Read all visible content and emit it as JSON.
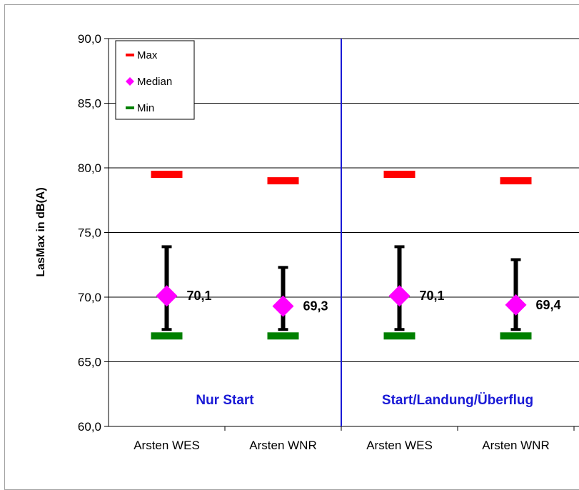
{
  "chart_data": {
    "type": "scatter",
    "ylabel": "LasMax  in dB(A)",
    "ylim": [
      60,
      90
    ],
    "ytick_step": 5,
    "ytick_labels": [
      "60,0",
      "65,0",
      "70,0",
      "75,0",
      "80,0",
      "85,0",
      "90,0"
    ],
    "categories": [
      "Arsten WES",
      "Arsten WNR",
      "Arsten WES",
      "Arsten WNR"
    ],
    "groups": [
      {
        "label": "Nur Start",
        "categories": [
          0,
          1
        ]
      },
      {
        "label": "Start/Landung/Überflug",
        "categories": [
          2,
          3
        ]
      }
    ],
    "series": [
      {
        "name": "Max",
        "color": "#ff0000",
        "values": [
          79.5,
          79.0,
          79.5,
          79.0
        ]
      },
      {
        "name": "Median",
        "color": "#ff00ff",
        "values": [
          70.1,
          69.3,
          70.1,
          69.4
        ]
      },
      {
        "name": "Min",
        "color": "#008000",
        "values": [
          67.0,
          67.0,
          67.0,
          67.0
        ]
      }
    ],
    "error_bars": {
      "color": "#000000",
      "upper": [
        73.9,
        72.3,
        73.9,
        72.9
      ],
      "lower": [
        67.5,
        67.5,
        67.5,
        67.5
      ]
    },
    "data_labels": [
      "70,1",
      "69,3",
      "70,1",
      "69,4"
    ],
    "grid": true,
    "legend": "top-left"
  }
}
